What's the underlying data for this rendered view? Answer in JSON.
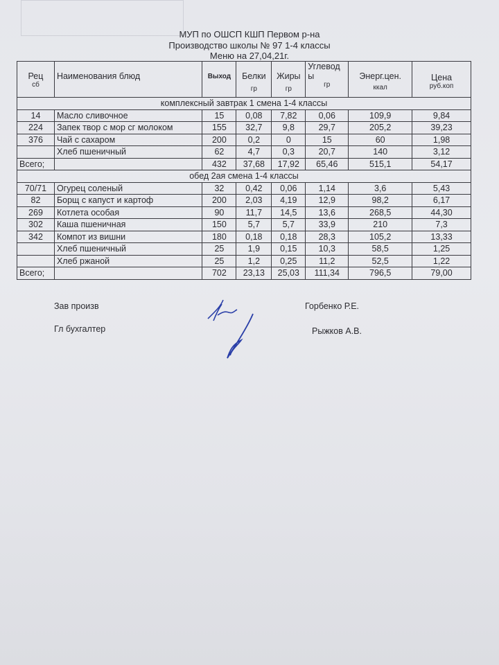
{
  "header": {
    "org": "МУП по ОШСП КШП Первом р-на",
    "school": "Производство школы № 97 1-4 классы",
    "menu_date": "Меню на 27,04,21г."
  },
  "columns": {
    "rec": "Рец",
    "rec_sub": "сб",
    "name": "Наименования блюд",
    "output": "Выход",
    "protein": "Белки",
    "protein_unit": "гр",
    "fat": "Жиры",
    "fat_unit": "гр",
    "carbs": "Углевод ы",
    "carbs_unit": "гр",
    "energy": "Энерг.цен.",
    "energy_unit": "ккал",
    "price": "Цена",
    "price_unit": "руб.коп"
  },
  "sections": [
    {
      "title": "комплексный завтрак 1 смена 1-4 классы",
      "rows": [
        [
          "14",
          "Масло сливочное",
          "15",
          "0,08",
          "7,82",
          "0,06",
          "109,9",
          "9,84"
        ],
        [
          "224",
          "Запек твор с мор сг молоком",
          "155",
          "32,7",
          "9,8",
          "29,7",
          "205,2",
          "39,23"
        ],
        [
          "376",
          "Чай с сахаром",
          "200",
          "0,2",
          "0",
          "15",
          "60",
          "1,98"
        ],
        [
          "",
          "Хлеб пшеничный",
          "62",
          "4,7",
          "0,3",
          "20,7",
          "140",
          "3,12"
        ]
      ],
      "total": [
        "Всего;",
        "",
        "432",
        "37,68",
        "17,92",
        "65,46",
        "515,1",
        "54,17"
      ]
    },
    {
      "title": "обед 2ая смена 1-4 классы",
      "rows": [
        [
          "70/71",
          "Огурец соленый",
          "32",
          "0,42",
          "0,06",
          "1,14",
          "3,6",
          "5,43"
        ],
        [
          "82",
          "Борщ с капуст и картоф",
          "200",
          "2,03",
          "4,19",
          "12,9",
          "98,2",
          "6,17"
        ],
        [
          "269",
          "Котлета особая",
          "90",
          "11,7",
          "14,5",
          "13,6",
          "268,5",
          "44,30"
        ],
        [
          "302",
          "Каша пшеничная",
          "150",
          "5,7",
          "5,7",
          "33,9",
          "210",
          "7,3"
        ],
        [
          "342",
          "Компот из вишни",
          "180",
          "0,18",
          "0,18",
          "28,3",
          "105,2",
          "13,33"
        ],
        [
          "",
          "Хлеб пшеничный",
          "25",
          "1,9",
          "0,15",
          "10,3",
          "58,5",
          "1,25"
        ],
        [
          "",
          "Хлеб ржаной",
          "25",
          "1,2",
          "0,25",
          "11,2",
          "52,5",
          "1,22"
        ]
      ],
      "total": [
        "Всего;",
        "",
        "702",
        "23,13",
        "25,03",
        "111,34",
        "796,5",
        "79,00"
      ]
    }
  ],
  "signatures": {
    "head_title": "Зав произв",
    "head_name": "Горбенко Р.Е.",
    "accountant_title": "Гл бухгалтер",
    "accountant_name": "Рыжков А.В.",
    "ink_color": "#2a3fa8"
  }
}
